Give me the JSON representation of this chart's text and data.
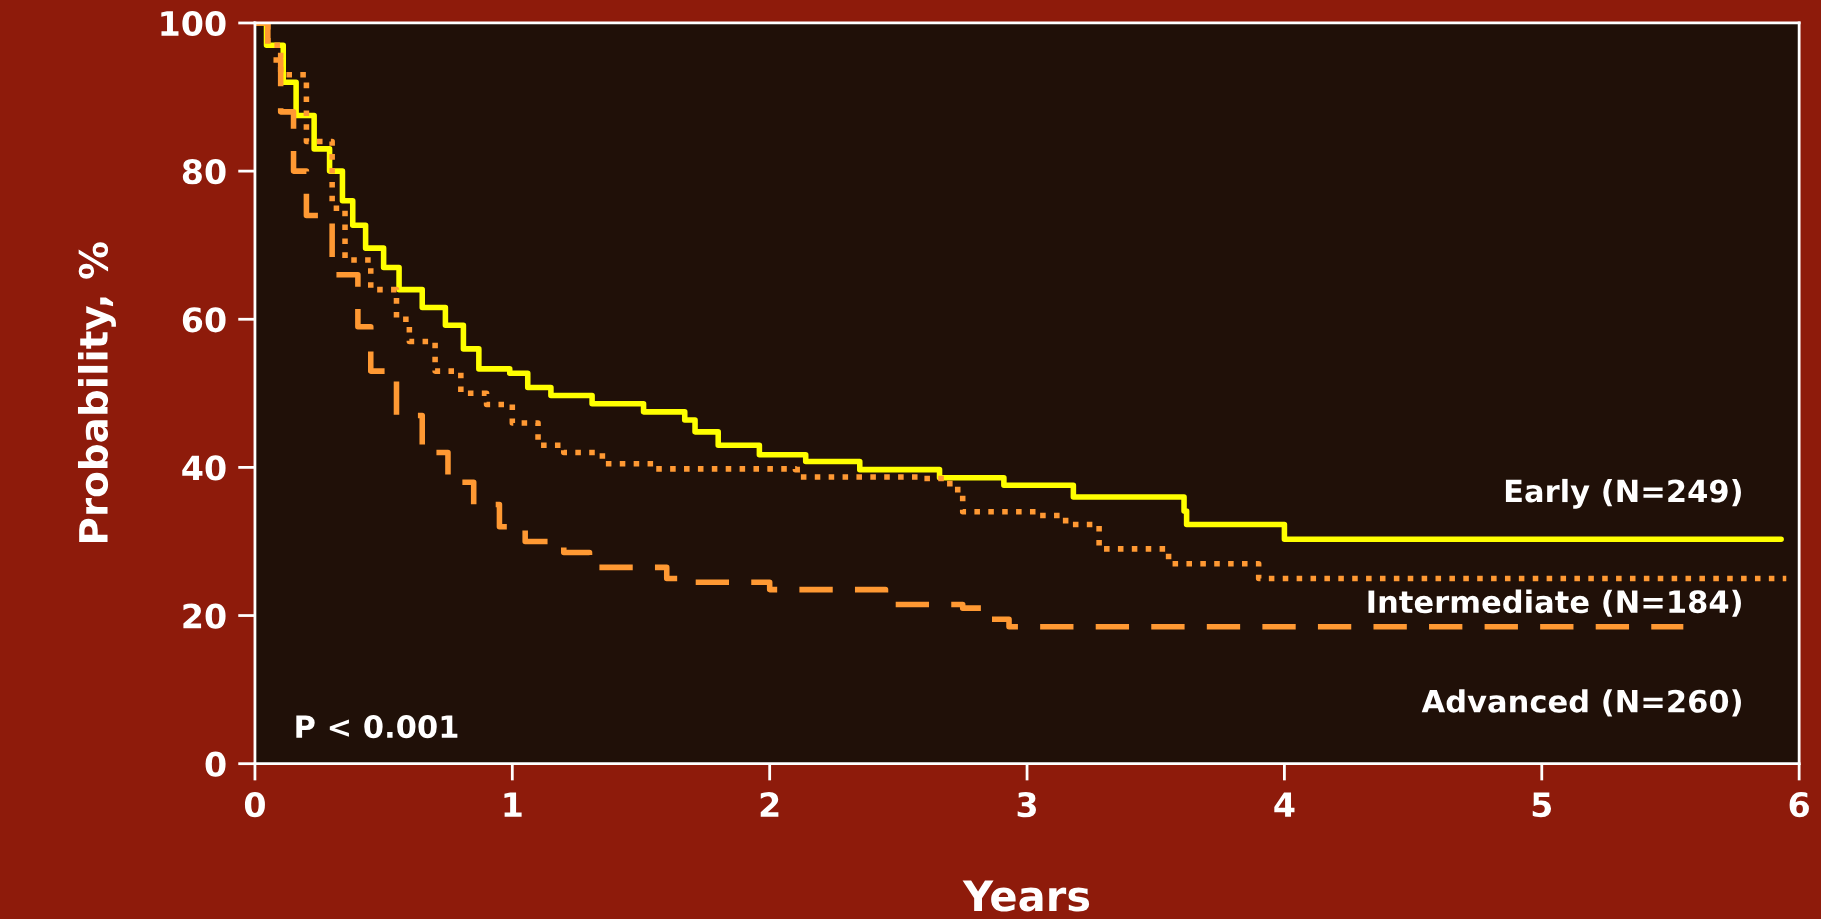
{
  "chart_data": {
    "type": "step",
    "xlabel": "Years",
    "ylabel": "Probability, %",
    "xlim": [
      0,
      6
    ],
    "ylim": [
      0,
      100
    ],
    "xticks": [
      0,
      1,
      2,
      3,
      4,
      5,
      6
    ],
    "yticks": [
      0,
      20,
      40,
      60,
      80,
      100
    ],
    "grid": false,
    "legend": false,
    "annotations": [
      "P < 0.001"
    ],
    "series": [
      {
        "name": "Early (N=249)",
        "color": "#ffff00",
        "line_style": "solid",
        "x": [
          0,
          0.045,
          0.11,
          0.16,
          0.23,
          0.29,
          0.34,
          0.38,
          0.43,
          0.5,
          0.56,
          0.65,
          0.74,
          0.81,
          0.87,
          0.99,
          1.06,
          1.15,
          1.31,
          1.51,
          1.67,
          1.71,
          1.8,
          1.96,
          2.14,
          2.35,
          2.66,
          2.91,
          3.18,
          3.61,
          3.62,
          4.0,
          5.93
        ],
        "values": [
          100,
          97,
          92,
          87.5,
          83,
          80,
          76,
          72.7,
          69.6,
          67,
          64,
          61.6,
          59.2,
          56,
          53.3,
          52.7,
          50.8,
          49.7,
          48.6,
          47.5,
          46.4,
          44.8,
          43,
          41.7,
          40.8,
          39.7,
          38.6,
          37.6,
          36,
          34.1,
          32.3,
          30.3,
          30.3
        ]
      },
      {
        "name": "Intermediate (N=184)",
        "color": "#ff9933",
        "line_style": "dotted",
        "x": [
          0,
          0.05,
          0.1,
          0.2,
          0.3,
          0.35,
          0.45,
          0.55,
          0.6,
          0.7,
          0.8,
          0.9,
          1.0,
          1.1,
          1.2,
          1.35,
          1.55,
          2.1,
          2.12,
          2.6,
          2.7,
          2.75,
          3.05,
          3.15,
          3.28,
          3.55,
          3.9,
          5.95
        ],
        "values": [
          100,
          97,
          93,
          84,
          75,
          68,
          64,
          60,
          57,
          53,
          50,
          48.5,
          46,
          43,
          42,
          40.5,
          39.8,
          39.7,
          38.7,
          38.5,
          37,
          34,
          33.5,
          32.3,
          29,
          27,
          25,
          25
        ]
      },
      {
        "name": "Advanced (N=260)",
        "color": "#ff9933",
        "line_style": "dashed",
        "x": [
          0,
          0.05,
          0.1,
          0.15,
          0.2,
          0.3,
          0.4,
          0.45,
          0.55,
          0.65,
          0.75,
          0.85,
          0.95,
          1.05,
          1.2,
          1.3,
          1.6,
          1.7,
          2.0,
          2.45,
          2.47,
          2.75,
          2.85,
          2.93,
          5.55
        ],
        "values": [
          100,
          95,
          88,
          80,
          74,
          66,
          59,
          53,
          47,
          42,
          38,
          35,
          32,
          30,
          28.5,
          26.5,
          25,
          24.5,
          23.5,
          22.7,
          21.5,
          21,
          19.5,
          18.5,
          18.5
        ]
      }
    ]
  }
}
